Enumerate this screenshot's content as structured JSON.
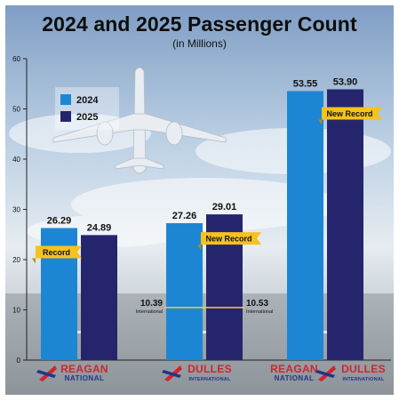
{
  "chart_data": {
    "type": "bar",
    "title": "2024 and 2025 Passenger Count",
    "subtitle": "(in Millions)",
    "ylim": [
      0,
      60
    ],
    "yticks": [
      0,
      10,
      20,
      30,
      40,
      50,
      60
    ],
    "grid": false,
    "legend_position": "top-left",
    "categories": [
      "REAGAN NATIONAL",
      "DULLES INTERNATIONAL",
      "REAGAN NATIONAL + DULLES INTERNATIONAL"
    ],
    "category_logos": [
      [
        {
          "name": "REAGAN",
          "sub": "NATIONAL"
        }
      ],
      [
        {
          "name": "DULLES",
          "sub": "INTERNATIONAL"
        }
      ],
      [
        {
          "name": "REAGAN",
          "sub": "NATIONAL",
          "plain": true
        },
        {
          "name": "DULLES",
          "sub": "INTERNATIONAL"
        }
      ]
    ],
    "series": [
      {
        "name": "2024",
        "color": "#1d86d4",
        "values": [
          26.29,
          27.26,
          53.55
        ],
        "labels": [
          "26.29",
          "27.26",
          "53.55"
        ]
      },
      {
        "name": "2025",
        "color": "#25256e",
        "values": [
          24.89,
          29.01,
          53.9
        ],
        "labels": [
          "24.89",
          "29.01",
          "53.90"
        ]
      }
    ],
    "ribbons": [
      {
        "category": 0,
        "series": 0,
        "text": "Record"
      },
      {
        "category": 1,
        "series": 1,
        "text": "New Record"
      },
      {
        "category": 2,
        "series": 1,
        "text": "New Record"
      }
    ],
    "international_markers": [
      {
        "category": 1,
        "series": 0,
        "value": 10.39,
        "label": "10.39",
        "sublabel": "International"
      },
      {
        "category": 1,
        "series": 1,
        "value": 10.53,
        "label": "10.53",
        "sublabel": "International"
      }
    ],
    "colors": {
      "ribbon": "#f6c21c",
      "marker_line": "#f6d21c",
      "logo_red": "#d0252c",
      "logo_blue": "#22358a"
    }
  }
}
